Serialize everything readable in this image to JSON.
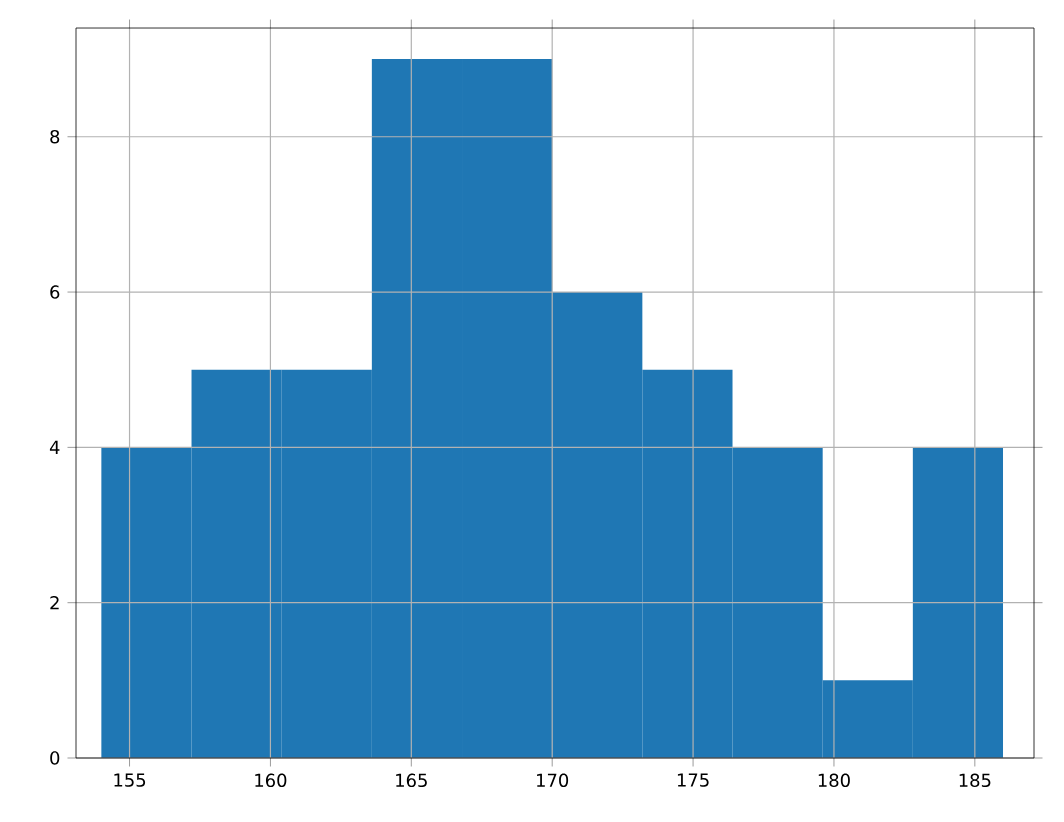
{
  "chart_data": {
    "type": "histogram",
    "bins": [
      154,
      157.2,
      160.4,
      163.6,
      166.8,
      170,
      173.2,
      176.4,
      179.6,
      182.8,
      186
    ],
    "values": [
      4,
      5,
      5,
      9,
      9,
      6,
      5,
      4,
      1,
      4
    ],
    "color": "#1f77b4",
    "xlim": [
      153.1,
      187.1
    ],
    "ylim": [
      0,
      9.4
    ],
    "xticks": [
      155,
      160,
      165,
      170,
      175,
      180,
      185
    ],
    "yticks": [
      0,
      2,
      4,
      6,
      8
    ],
    "grid": true
  }
}
